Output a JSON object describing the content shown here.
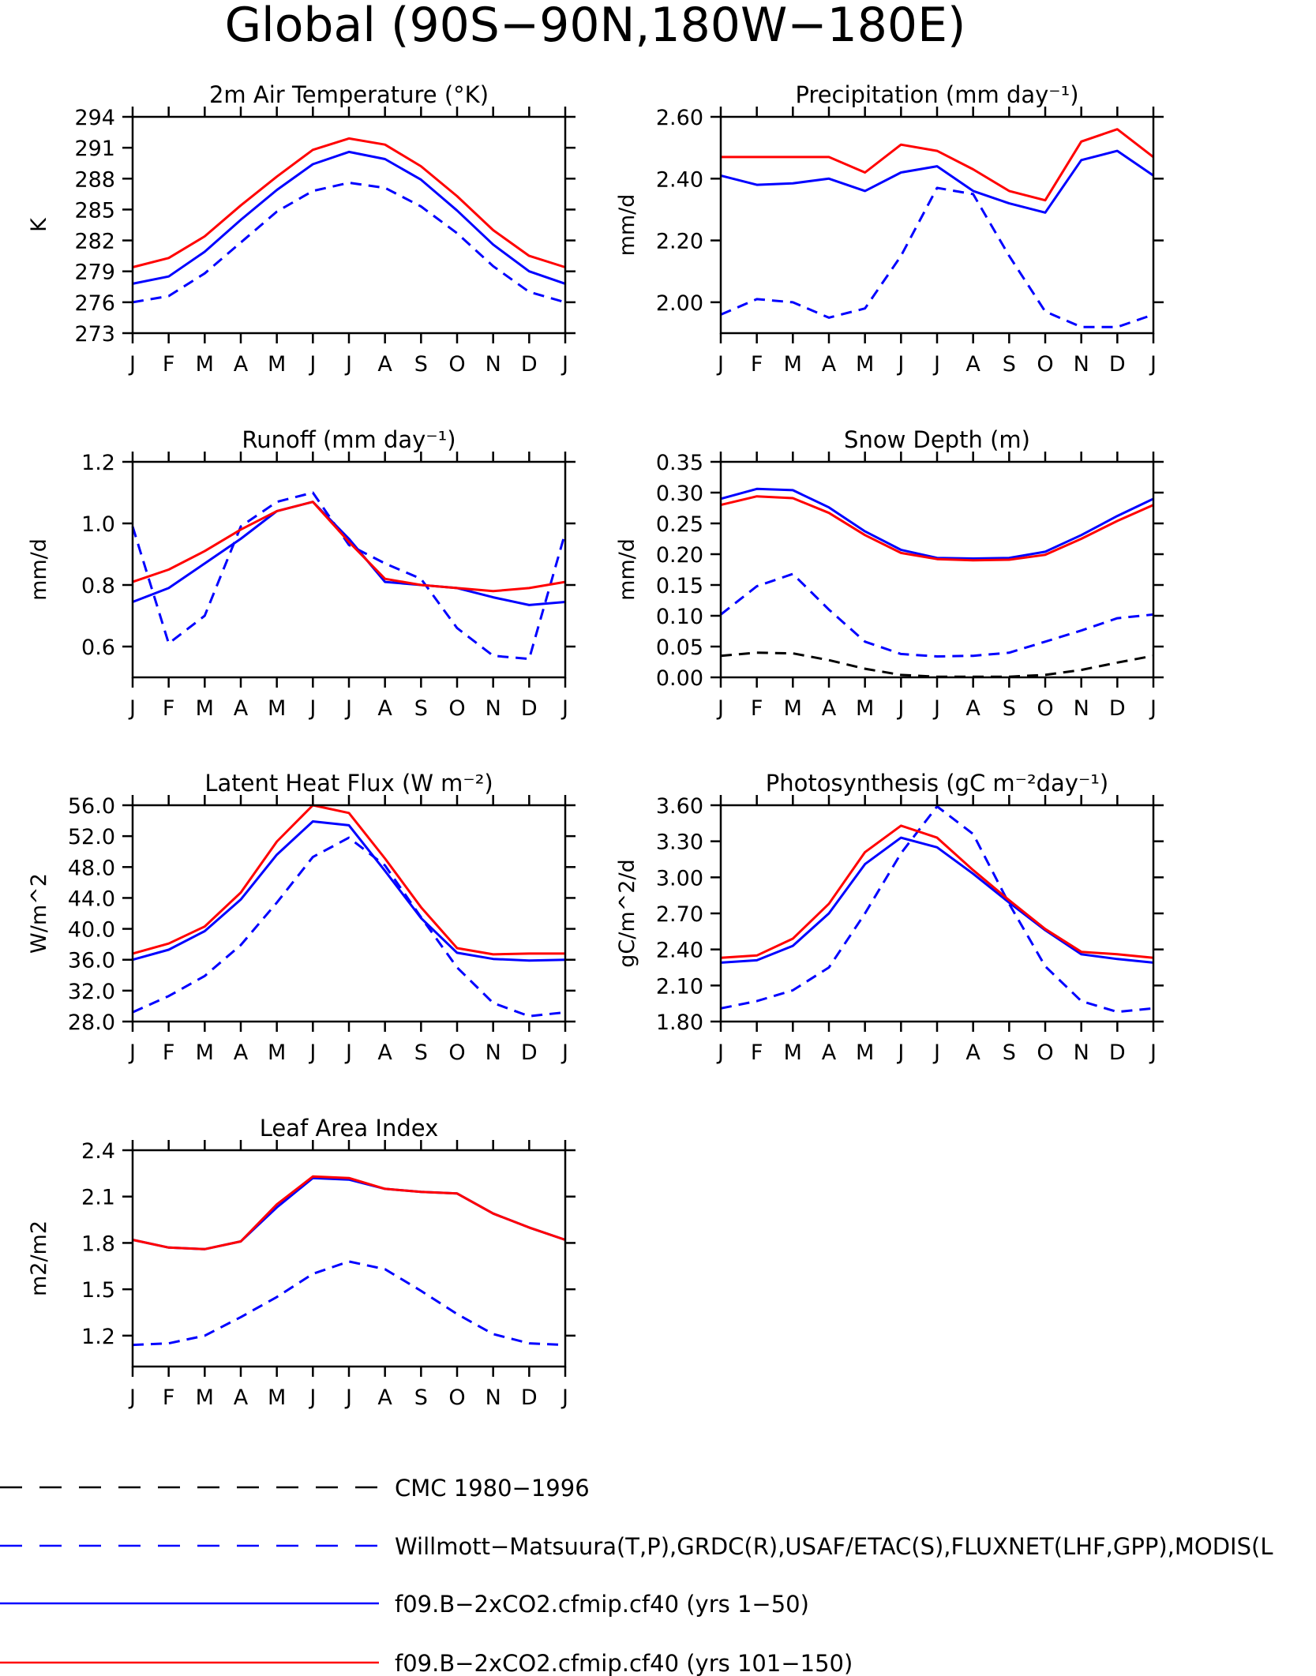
{
  "page_title": "Global (90S−90N,180W−180E)",
  "months": [
    "J",
    "F",
    "M",
    "A",
    "M",
    "J",
    "J",
    "A",
    "S",
    "O",
    "N",
    "D",
    "J"
  ],
  "colors": {
    "obs": "#0000ff",
    "model1": "#0000ff",
    "model2": "#ff0000",
    "cmc": "#000000"
  },
  "legend": [
    {
      "key": "cmc",
      "label": "CMC 1980−1996",
      "color": "#000000",
      "dash": true
    },
    {
      "key": "obs",
      "label": "Willmott−Matsuura(T,P),GRDC(R),USAF/ETAC(S),FLUXNET(LHF,GPP),MODIS(L",
      "color": "#0000ff",
      "dash": true
    },
    {
      "key": "model1",
      "label": "f09.B−2xCO2.cfmip.cf40 (yrs 1−50)",
      "color": "#0000ff",
      "dash": false
    },
    {
      "key": "model2",
      "label": "f09.B−2xCO2.cfmip.cf40 (yrs 101−150)",
      "color": "#ff0000",
      "dash": false
    }
  ],
  "chart_data": [
    {
      "type": "line",
      "title": "2m Air Temperature (°K)",
      "ylabel": "K",
      "ylim": [
        273,
        294
      ],
      "yticks": [
        "273",
        "276",
        "279",
        "282",
        "285",
        "288",
        "291",
        "294"
      ],
      "x": [
        "J",
        "F",
        "M",
        "A",
        "M",
        "J",
        "J",
        "A",
        "S",
        "O",
        "N",
        "D",
        "J"
      ],
      "series": [
        {
          "key": "obs",
          "values": [
            276.0,
            276.6,
            278.8,
            281.8,
            284.8,
            286.8,
            287.6,
            287.1,
            285.3,
            282.7,
            279.5,
            277.0,
            276.0
          ]
        },
        {
          "key": "model1",
          "values": [
            277.8,
            278.5,
            280.9,
            284.0,
            286.9,
            289.4,
            290.6,
            289.9,
            287.9,
            284.9,
            281.6,
            279.0,
            277.8
          ]
        },
        {
          "key": "model2",
          "values": [
            279.4,
            280.3,
            282.4,
            285.4,
            288.2,
            290.8,
            291.9,
            291.3,
            289.2,
            286.3,
            283.0,
            280.5,
            279.4
          ]
        }
      ]
    },
    {
      "type": "line",
      "title": "Precipitation (mm day⁻¹)",
      "ylabel": "mm/d",
      "ylim": [
        1.9,
        2.6
      ],
      "yticks": [
        "2.00",
        "2.20",
        "2.40",
        "2.60"
      ],
      "x": [
        "J",
        "F",
        "M",
        "A",
        "M",
        "J",
        "J",
        "A",
        "S",
        "O",
        "N",
        "D",
        "J"
      ],
      "series": [
        {
          "key": "obs",
          "values": [
            1.96,
            2.01,
            2.0,
            1.95,
            1.98,
            2.15,
            2.37,
            2.35,
            2.15,
            1.97,
            1.92,
            1.92,
            1.96
          ]
        },
        {
          "key": "model1",
          "values": [
            2.41,
            2.38,
            2.385,
            2.4,
            2.36,
            2.42,
            2.44,
            2.36,
            2.32,
            2.29,
            2.46,
            2.49,
            2.41
          ]
        },
        {
          "key": "model2",
          "values": [
            2.47,
            2.47,
            2.47,
            2.47,
            2.42,
            2.51,
            2.49,
            2.43,
            2.36,
            2.33,
            2.52,
            2.56,
            2.47
          ]
        }
      ]
    },
    {
      "type": "line",
      "title": "Runoff (mm day⁻¹)",
      "ylabel": "mm/d",
      "ylim": [
        0.5,
        1.2
      ],
      "yticks": [
        "0.6",
        "0.8",
        "1.0",
        "1.2"
      ],
      "x": [
        "J",
        "F",
        "M",
        "A",
        "M",
        "J",
        "J",
        "A",
        "S",
        "O",
        "N",
        "D",
        "J"
      ],
      "series": [
        {
          "key": "obs",
          "values": [
            0.99,
            0.61,
            0.7,
            0.99,
            1.07,
            1.1,
            0.93,
            0.87,
            0.82,
            0.66,
            0.57,
            0.56,
            0.97
          ]
        },
        {
          "key": "model1",
          "values": [
            0.745,
            0.79,
            0.87,
            0.95,
            1.04,
            1.07,
            0.95,
            0.81,
            0.8,
            0.79,
            0.76,
            0.735,
            0.745
          ]
        },
        {
          "key": "model2",
          "values": [
            0.81,
            0.85,
            0.91,
            0.98,
            1.04,
            1.07,
            0.94,
            0.82,
            0.8,
            0.79,
            0.78,
            0.79,
            0.81
          ]
        }
      ]
    },
    {
      "type": "line",
      "title": "Snow Depth (m)",
      "ylabel": "mm/d",
      "ylim": [
        0,
        0.35
      ],
      "yticks": [
        "0.00",
        "0.05",
        "0.10",
        "0.15",
        "0.20",
        "0.25",
        "0.30",
        "0.35"
      ],
      "x": [
        "J",
        "F",
        "M",
        "A",
        "M",
        "J",
        "J",
        "A",
        "S",
        "O",
        "N",
        "D",
        "J"
      ],
      "series": [
        {
          "key": "cmc",
          "values": [
            0.035,
            0.04,
            0.039,
            0.028,
            0.014,
            0.004,
            0.001,
            0.001,
            0.001,
            0.004,
            0.012,
            0.024,
            0.035
          ]
        },
        {
          "key": "obs",
          "values": [
            0.102,
            0.148,
            0.168,
            0.11,
            0.058,
            0.038,
            0.034,
            0.035,
            0.04,
            0.058,
            0.076,
            0.096,
            0.102
          ]
        },
        {
          "key": "model1",
          "values": [
            0.29,
            0.306,
            0.304,
            0.276,
            0.237,
            0.207,
            0.194,
            0.193,
            0.194,
            0.204,
            0.231,
            0.262,
            0.29
          ]
        },
        {
          "key": "model2",
          "values": [
            0.28,
            0.294,
            0.291,
            0.267,
            0.231,
            0.202,
            0.192,
            0.19,
            0.191,
            0.199,
            0.225,
            0.254,
            0.28
          ]
        }
      ]
    },
    {
      "type": "line",
      "title": "Latent Heat Flux (W m⁻²)",
      "ylabel": "W/m^2",
      "ylim": [
        28,
        56
      ],
      "yticks": [
        "28.0",
        "32.0",
        "36.0",
        "40.0",
        "44.0",
        "48.0",
        "52.0",
        "56.0"
      ],
      "x": [
        "J",
        "F",
        "M",
        "A",
        "M",
        "J",
        "J",
        "A",
        "S",
        "O",
        "N",
        "D",
        "J"
      ],
      "series": [
        {
          "key": "obs",
          "values": [
            29.2,
            31.3,
            33.9,
            37.9,
            43.4,
            49.3,
            51.8,
            48.2,
            41.5,
            35.0,
            30.4,
            28.7,
            29.2
          ]
        },
        {
          "key": "model1",
          "values": [
            36.0,
            37.3,
            39.7,
            43.8,
            49.6,
            53.9,
            53.4,
            47.5,
            41.4,
            36.9,
            36.1,
            35.9,
            36.0
          ]
        },
        {
          "key": "model2",
          "values": [
            36.8,
            38.1,
            40.3,
            44.7,
            51.3,
            56.0,
            55.0,
            49.1,
            42.8,
            37.5,
            36.7,
            36.8,
            36.8
          ]
        }
      ]
    },
    {
      "type": "line",
      "title": "Photosynthesis (gC m⁻²day⁻¹)",
      "ylabel": "gC/m^2/d",
      "ylim": [
        1.8,
        3.6
      ],
      "yticks": [
        "1.80",
        "2.10",
        "2.40",
        "2.70",
        "3.00",
        "3.30",
        "3.60"
      ],
      "x": [
        "J",
        "F",
        "M",
        "A",
        "M",
        "J",
        "J",
        "A",
        "S",
        "O",
        "N",
        "D",
        "J"
      ],
      "series": [
        {
          "key": "obs",
          "values": [
            1.91,
            1.97,
            2.06,
            2.25,
            2.7,
            3.2,
            3.59,
            3.36,
            2.78,
            2.26,
            1.97,
            1.88,
            1.91
          ]
        },
        {
          "key": "model1",
          "values": [
            2.29,
            2.31,
            2.43,
            2.7,
            3.11,
            3.33,
            3.25,
            3.03,
            2.79,
            2.56,
            2.36,
            2.32,
            2.29
          ]
        },
        {
          "key": "model2",
          "values": [
            2.33,
            2.35,
            2.49,
            2.78,
            3.21,
            3.43,
            3.33,
            3.06,
            2.81,
            2.57,
            2.38,
            2.36,
            2.33
          ]
        }
      ]
    },
    {
      "type": "line",
      "title": "Leaf Area Index",
      "ylabel": "m2/m2",
      "ylim": [
        1.0,
        2.4
      ],
      "yticks": [
        "1.2",
        "1.5",
        "1.8",
        "2.1",
        "2.4"
      ],
      "x": [
        "J",
        "F",
        "M",
        "A",
        "M",
        "J",
        "J",
        "A",
        "S",
        "O",
        "N",
        "D",
        "J"
      ],
      "series": [
        {
          "key": "obs",
          "values": [
            1.14,
            1.15,
            1.2,
            1.32,
            1.45,
            1.6,
            1.68,
            1.63,
            1.49,
            1.34,
            1.21,
            1.15,
            1.14
          ]
        },
        {
          "key": "model1",
          "values": [
            1.82,
            1.77,
            1.76,
            1.81,
            2.03,
            2.22,
            2.21,
            2.15,
            2.13,
            2.12,
            1.99,
            1.9,
            1.82
          ]
        },
        {
          "key": "model2",
          "values": [
            1.82,
            1.77,
            1.76,
            1.81,
            2.05,
            2.23,
            2.22,
            2.15,
            2.13,
            2.12,
            1.99,
            1.9,
            1.82
          ]
        }
      ]
    }
  ]
}
